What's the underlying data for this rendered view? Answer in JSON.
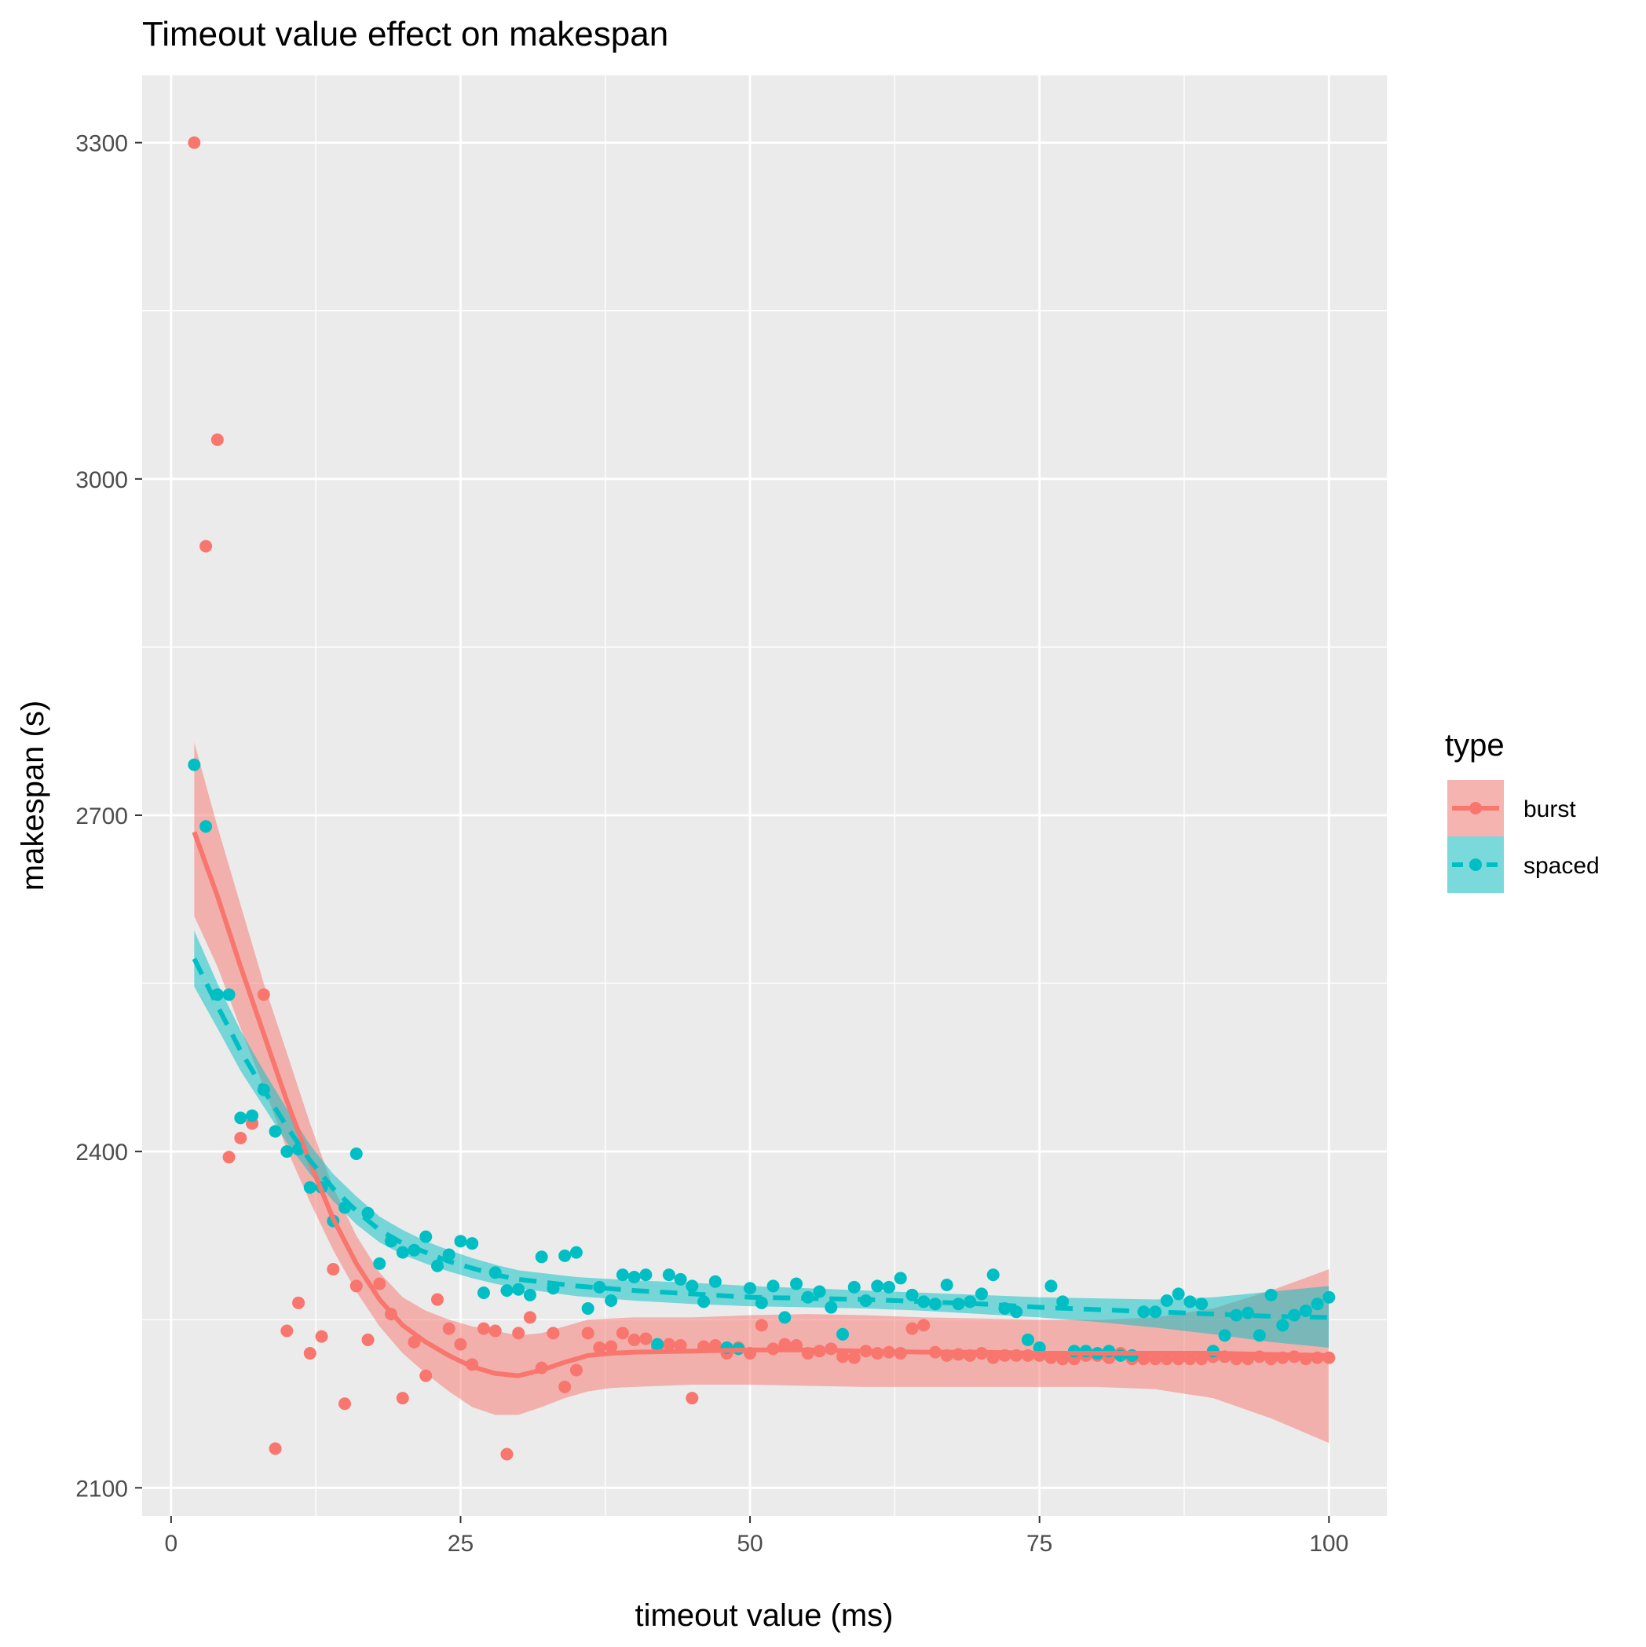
{
  "chart_data": {
    "type": "scatter",
    "title": "Timeout value effect on makespan",
    "xlabel": "timeout value (ms)",
    "ylabel": "makespan (s)",
    "xlim": [
      -2.5,
      105
    ],
    "ylim": [
      2075,
      3360
    ],
    "x_ticks": [
      0,
      25,
      50,
      75,
      100
    ],
    "x_tick_labels": [
      "0",
      "25",
      "50",
      "75",
      "100"
    ],
    "y_ticks": [
      2100,
      2400,
      2700,
      3000,
      3300
    ],
    "y_tick_labels": [
      "2100",
      "2400",
      "2700",
      "3000",
      "3300"
    ],
    "x_minor": [
      12.5,
      37.5,
      62.5,
      87.5
    ],
    "y_minor": [
      2250,
      2550,
      2850,
      3150
    ],
    "grid": true,
    "legend": {
      "title": "type",
      "position": "right",
      "entries": [
        "burst",
        "spaced"
      ]
    },
    "colors": {
      "panel": "#ebebeb",
      "grid": "#ffffff",
      "burst": "#f8766d",
      "spaced": "#00bfc4",
      "text": "#000000",
      "tick_text": "#4d4d4d"
    },
    "series": [
      {
        "name": "burst",
        "color": "#f8766d",
        "line_style": "solid",
        "x": [
          2,
          3,
          4,
          5,
          6,
          7,
          8,
          9,
          10,
          11,
          12,
          13,
          14,
          15,
          16,
          17,
          18,
          19,
          20,
          21,
          22,
          23,
          24,
          25,
          26,
          27,
          28,
          29,
          30,
          31,
          32,
          33,
          34,
          35,
          36,
          37,
          38,
          39,
          40,
          41,
          42,
          43,
          44,
          45,
          46,
          47,
          48,
          49,
          50,
          51,
          52,
          53,
          54,
          55,
          56,
          57,
          58,
          59,
          60,
          61,
          62,
          63,
          64,
          65,
          66,
          67,
          68,
          69,
          70,
          71,
          72,
          73,
          74,
          75,
          76,
          77,
          78,
          79,
          80,
          81,
          82,
          83,
          84,
          85,
          86,
          87,
          88,
          89,
          90,
          91,
          92,
          93,
          94,
          95,
          96,
          97,
          98,
          99,
          100
        ],
        "y": [
          3300,
          2940,
          3035,
          2395,
          2412,
          2425,
          2540,
          2135,
          2240,
          2265,
          2220,
          2235,
          2295,
          2175,
          2280,
          2232,
          2282,
          2255,
          2180,
          2230,
          2200,
          2268,
          2242,
          2228,
          2210,
          2242,
          2240,
          2130,
          2238,
          2252,
          2207,
          2238,
          2190,
          2205,
          2238,
          2225,
          2226,
          2238,
          2232,
          2233,
          2226,
          2228,
          2227,
          2180,
          2226,
          2227,
          2220,
          2225,
          2220,
          2245,
          2224,
          2228,
          2227,
          2220,
          2222,
          2224,
          2217,
          2216,
          2222,
          2220,
          2221,
          2220,
          2242,
          2245,
          2221,
          2218,
          2219,
          2218,
          2220,
          2216,
          2218,
          2218,
          2218,
          2218,
          2216,
          2215,
          2215,
          2218,
          2218,
          2216,
          2220,
          2215,
          2215,
          2215,
          2215,
          2215,
          2215,
          2215,
          2217,
          2217,
          2215,
          2215,
          2217,
          2215,
          2216,
          2217,
          2215,
          2216,
          2216
        ],
        "smooth_x": [
          2,
          4,
          6,
          8,
          10,
          12,
          14,
          16,
          18,
          20,
          22,
          24,
          26,
          28,
          30,
          32,
          34,
          36,
          38,
          40,
          45,
          50,
          55,
          60,
          65,
          70,
          75,
          80,
          85,
          90,
          95,
          100
        ],
        "smooth_y": [
          2685,
          2628,
          2565,
          2505,
          2445,
          2390,
          2340,
          2300,
          2268,
          2245,
          2230,
          2218,
          2208,
          2202,
          2200,
          2205,
          2212,
          2218,
          2220,
          2221,
          2222,
          2223,
          2223,
          2222,
          2221,
          2221,
          2220,
          2220,
          2220,
          2220,
          2219,
          2218
        ],
        "band_lo": [
          2610,
          2565,
          2510,
          2458,
          2402,
          2355,
          2312,
          2275,
          2244,
          2220,
          2202,
          2186,
          2172,
          2165,
          2165,
          2172,
          2180,
          2186,
          2189,
          2190,
          2192,
          2192,
          2191,
          2190,
          2190,
          2190,
          2190,
          2190,
          2188,
          2180,
          2162,
          2140
        ],
        "band_hi": [
          2765,
          2690,
          2620,
          2550,
          2488,
          2425,
          2368,
          2325,
          2292,
          2270,
          2258,
          2250,
          2244,
          2240,
          2236,
          2238,
          2244,
          2250,
          2251,
          2252,
          2252,
          2254,
          2255,
          2254,
          2252,
          2251,
          2250,
          2250,
          2252,
          2260,
          2276,
          2295
        ]
      },
      {
        "name": "spaced",
        "color": "#00bfc4",
        "line_style": "dashed",
        "x": [
          2,
          3,
          4,
          5,
          6,
          7,
          8,
          9,
          10,
          11,
          12,
          13,
          14,
          15,
          16,
          17,
          18,
          19,
          20,
          21,
          22,
          23,
          24,
          25,
          26,
          27,
          28,
          29,
          30,
          31,
          32,
          33,
          34,
          35,
          36,
          37,
          38,
          39,
          40,
          41,
          42,
          43,
          44,
          45,
          46,
          47,
          48,
          49,
          50,
          51,
          52,
          53,
          54,
          55,
          56,
          57,
          58,
          59,
          60,
          61,
          62,
          63,
          64,
          65,
          66,
          67,
          68,
          69,
          70,
          71,
          72,
          73,
          74,
          75,
          76,
          77,
          78,
          79,
          80,
          81,
          82,
          83,
          84,
          85,
          86,
          87,
          88,
          89,
          90,
          91,
          92,
          93,
          94,
          95,
          96,
          97,
          98,
          99,
          100
        ],
        "y": [
          2745,
          2690,
          2540,
          2540,
          2430,
          2432,
          2455,
          2418,
          2400,
          2402,
          2368,
          2368,
          2338,
          2350,
          2398,
          2345,
          2300,
          2320,
          2310,
          2312,
          2324,
          2298,
          2308,
          2320,
          2318,
          2274,
          2292,
          2276,
          2277,
          2272,
          2306,
          2278,
          2307,
          2310,
          2260,
          2279,
          2267,
          2290,
          2288,
          2290,
          2228,
          2290,
          2286,
          2280,
          2266,
          2284,
          2225,
          2224,
          2278,
          2265,
          2280,
          2252,
          2282,
          2270,
          2275,
          2261,
          2237,
          2279,
          2267,
          2280,
          2279,
          2287,
          2272,
          2266,
          2264,
          2281,
          2264,
          2266,
          2273,
          2290,
          2260,
          2257,
          2232,
          2225,
          2280,
          2266,
          2222,
          2222,
          2220,
          2222,
          2218,
          2218,
          2257,
          2257,
          2267,
          2273,
          2266,
          2264,
          2222,
          2236,
          2254,
          2256,
          2236,
          2272,
          2245,
          2254,
          2258,
          2264,
          2270
        ],
        "smooth_x": [
          2,
          4,
          6,
          8,
          10,
          12,
          14,
          16,
          18,
          20,
          22,
          24,
          26,
          28,
          30,
          35,
          40,
          45,
          50,
          55,
          60,
          65,
          70,
          75,
          80,
          85,
          90,
          95,
          100
        ],
        "smooth_y": [
          2572,
          2530,
          2490,
          2455,
          2422,
          2392,
          2367,
          2347,
          2330,
          2318,
          2310,
          2302,
          2296,
          2290,
          2286,
          2280,
          2276,
          2273,
          2270,
          2269,
          2268,
          2266,
          2264,
          2261,
          2259,
          2257,
          2255,
          2253,
          2252
        ],
        "band_lo": [
          2547,
          2510,
          2472,
          2440,
          2408,
          2380,
          2356,
          2335,
          2319,
          2308,
          2300,
          2293,
          2287,
          2282,
          2278,
          2271,
          2267,
          2264,
          2262,
          2261,
          2260,
          2258,
          2255,
          2252,
          2248,
          2243,
          2237,
          2230,
          2225
        ],
        "band_hi": [
          2597,
          2550,
          2508,
          2472,
          2438,
          2406,
          2380,
          2360,
          2342,
          2330,
          2320,
          2312,
          2305,
          2299,
          2294,
          2288,
          2285,
          2283,
          2280,
          2278,
          2276,
          2274,
          2272,
          2270,
          2269,
          2268,
          2270,
          2275,
          2280
        ]
      }
    ]
  }
}
